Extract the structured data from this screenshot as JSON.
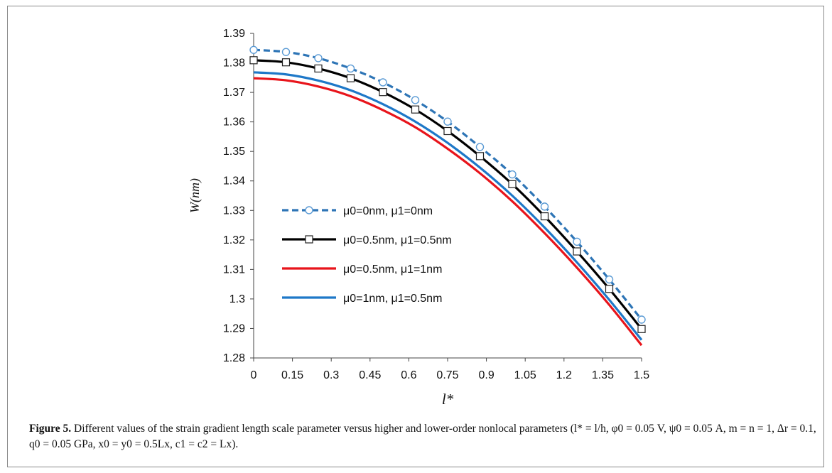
{
  "chart_data": {
    "type": "line",
    "xlabel": "l*",
    "ylabel": "W(nm)",
    "xticks": [
      "0",
      "0.15",
      "0.3",
      "0.45",
      "0.6",
      "0.75",
      "0.9",
      "1.05",
      "1.2",
      "1.35",
      "1.5"
    ],
    "yticks": [
      "1.28",
      "1.29",
      "1.3",
      "1.31",
      "1.32",
      "1.33",
      "1.34",
      "1.35",
      "1.36",
      "1.37",
      "1.38",
      "1.39"
    ],
    "xlim": [
      0,
      1.5
    ],
    "ylim": [
      1.28,
      1.39
    ],
    "grid": false,
    "legend_position": "center-left",
    "x": [
      0,
      0.125,
      0.25,
      0.375,
      0.5,
      0.625,
      0.75,
      0.875,
      1.0,
      1.125,
      1.25,
      1.375,
      1.5
    ],
    "series": [
      {
        "name": "μ0=0nm, μ1=0nm",
        "color": "#2e75b6",
        "dash": "dashed",
        "marker": "circle",
        "values": [
          1.3844,
          1.3837,
          1.3816,
          1.3781,
          1.3734,
          1.3674,
          1.3601,
          1.3515,
          1.3422,
          1.3313,
          1.3194,
          1.3066,
          1.293
        ]
      },
      {
        "name": "μ0=0.5nm, μ1=0.5nm",
        "color": "#000000",
        "dash": "solid",
        "marker": "square",
        "values": [
          1.3809,
          1.3802,
          1.3781,
          1.3748,
          1.3701,
          1.3642,
          1.3569,
          1.3484,
          1.3389,
          1.328,
          1.3161,
          1.3034,
          1.2898
        ]
      },
      {
        "name": "μ0=0.5nm, μ1=1nm",
        "color": "#e8141b",
        "dash": "solid",
        "marker": "none",
        "values": [
          1.3748,
          1.3741,
          1.372,
          1.3687,
          1.364,
          1.3582,
          1.3509,
          1.3426,
          1.3331,
          1.3223,
          1.3106,
          1.298,
          1.2843
        ]
      },
      {
        "name": "μ0=1nm, μ1=0.5nm",
        "color": "#1e78c8",
        "dash": "solid",
        "marker": "none",
        "values": [
          1.3768,
          1.3761,
          1.374,
          1.3707,
          1.366,
          1.3601,
          1.3529,
          1.3445,
          1.335,
          1.3242,
          1.3124,
          1.2997,
          1.2861
        ]
      }
    ]
  },
  "caption": {
    "label": "Figure 5.",
    "text": " Different values of the strain gradient length scale parameter versus higher and lower-order nonlocal parameters (l* = l/h, φ0 = 0.05 V, ψ0 = 0.05 A, m = n = 1, Δr = 0.1, q0 = 0.05 GPa, x0 = y0 = 0.5Lx, c1 = c2 = Lx)."
  }
}
